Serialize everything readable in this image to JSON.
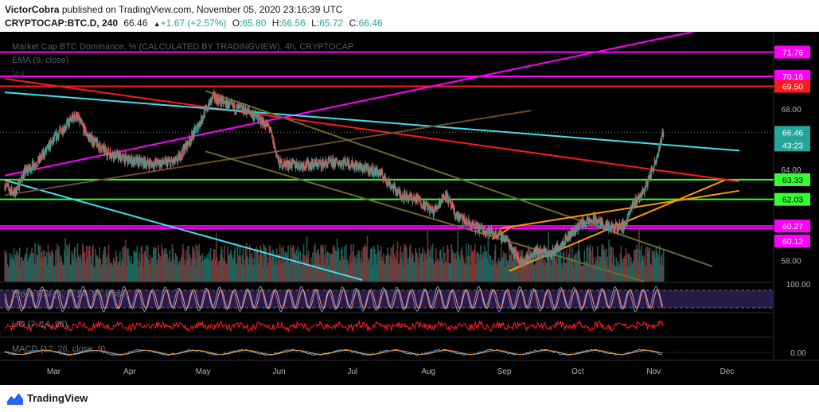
{
  "header": {
    "author": "VictorCobra",
    "published_text": "published on TradingView.com, November 05, 2020 23:16:39 UTC",
    "symbol": "CRYPTOCAP:BTC.D, 240",
    "last": "66.46",
    "change": "+1.67 (+2.57%)",
    "open_label": "O:",
    "open": "65.80",
    "high_label": "H:",
    "high": "66.56",
    "low_label": "L:",
    "low": "65.72",
    "close_label": "C:",
    "close": "66.46"
  },
  "legends": {
    "main": "Market Cap BTC Dominance, % (CALCULATED BY TRADINGVIEW), 4h, CRYPTOCAP",
    "ema": "EMA (9, close)",
    "vol": "Vol",
    "stoch": "Stoch RSI (3, 3, 14, 14, close)",
    "uo": "UO (7, 14, 28)",
    "macd": "MACD (12, 26, close, 9)"
  },
  "footer": {
    "brand": "TradingView"
  },
  "colors": {
    "up": "#26a69a",
    "down": "#ef5350",
    "magenta": "#ff00ff",
    "red": "#ff1a1a",
    "cyan": "#40e0f0",
    "green": "#33ff33",
    "orange": "#ff9900",
    "olive": "#6b6b2a",
    "brown": "#6b4a2a"
  },
  "chart_data": {
    "type": "candlestick",
    "title": "Market Cap BTC Dominance, % (CALCULATED BY TRADINGVIEW), 4h, CRYPTOCAP",
    "x_tick_labels": [
      "Mar",
      "Apr",
      "May",
      "Jun",
      "Jul",
      "Aug",
      "Sep",
      "Oct",
      "Nov",
      "Dec"
    ],
    "y_axis_ticks": [
      "68.00",
      "64.00",
      "58.00"
    ],
    "ylim": [
      56.6,
      73.1
    ],
    "price_tags": [
      {
        "label": "71.76",
        "kind": "magenta"
      },
      {
        "label": "70.16",
        "kind": "magenta"
      },
      {
        "label": "69.50",
        "kind": "red"
      },
      {
        "label": "66.46",
        "kind": "current"
      },
      {
        "label": "43:23",
        "kind": "countdown"
      },
      {
        "label": "63.33",
        "kind": "green"
      },
      {
        "label": "62.03",
        "kind": "green"
      },
      {
        "label": "60.27",
        "kind": "magenta"
      },
      {
        "label": "60.12",
        "kind": "magenta"
      }
    ],
    "horizontal_levels": [
      {
        "value": 71.76,
        "kind": "magenta"
      },
      {
        "value": 70.16,
        "kind": "magenta"
      },
      {
        "value": 69.5,
        "kind": "red"
      },
      {
        "value": 63.33,
        "kind": "green"
      },
      {
        "value": 62.03,
        "kind": "green"
      },
      {
        "value": 60.27,
        "kind": "magenta"
      },
      {
        "value": 60.12,
        "kind": "magenta"
      }
    ],
    "price_path": [
      {
        "date": "2020-02-10",
        "v": 63.0
      },
      {
        "date": "2020-02-14",
        "v": 62.4
      },
      {
        "date": "2020-02-18",
        "v": 63.8
      },
      {
        "date": "2020-02-24",
        "v": 64.6
      },
      {
        "date": "2020-03-03",
        "v": 66.4
      },
      {
        "date": "2020-03-10",
        "v": 67.6
      },
      {
        "date": "2020-03-15",
        "v": 66.2
      },
      {
        "date": "2020-03-22",
        "v": 65.2
      },
      {
        "date": "2020-04-01",
        "v": 64.6
      },
      {
        "date": "2020-04-10",
        "v": 64.4
      },
      {
        "date": "2020-04-20",
        "v": 64.5
      },
      {
        "date": "2020-04-28",
        "v": 66.6
      },
      {
        "date": "2020-05-05",
        "v": 68.8
      },
      {
        "date": "2020-05-12",
        "v": 68.2
      },
      {
        "date": "2020-05-20",
        "v": 67.8
      },
      {
        "date": "2020-05-28",
        "v": 66.8
      },
      {
        "date": "2020-06-01",
        "v": 64.4
      },
      {
        "date": "2020-06-10",
        "v": 64.3
      },
      {
        "date": "2020-06-20",
        "v": 64.4
      },
      {
        "date": "2020-06-28",
        "v": 64.5
      },
      {
        "date": "2020-07-05",
        "v": 64.1
      },
      {
        "date": "2020-07-12",
        "v": 63.8
      },
      {
        "date": "2020-07-20",
        "v": 62.4
      },
      {
        "date": "2020-07-28",
        "v": 62.0
      },
      {
        "date": "2020-08-03",
        "v": 61.2
      },
      {
        "date": "2020-08-08",
        "v": 62.4
      },
      {
        "date": "2020-08-12",
        "v": 61.0
      },
      {
        "date": "2020-08-20",
        "v": 60.2
      },
      {
        "date": "2020-08-28",
        "v": 59.8
      },
      {
        "date": "2020-09-02",
        "v": 59.4
      },
      {
        "date": "2020-09-08",
        "v": 57.8
      },
      {
        "date": "2020-09-14",
        "v": 58.6
      },
      {
        "date": "2020-09-20",
        "v": 58.4
      },
      {
        "date": "2020-09-26",
        "v": 59.4
      },
      {
        "date": "2020-10-02",
        "v": 60.4
      },
      {
        "date": "2020-10-08",
        "v": 60.7
      },
      {
        "date": "2020-10-14",
        "v": 60.1
      },
      {
        "date": "2020-10-20",
        "v": 60.3
      },
      {
        "date": "2020-10-24",
        "v": 61.8
      },
      {
        "date": "2020-10-28",
        "v": 62.6
      },
      {
        "date": "2020-11-01",
        "v": 64.2
      },
      {
        "date": "2020-11-05",
        "v": 66.46
      }
    ],
    "trendlines": [
      {
        "kind": "magenta",
        "from": {
          "date": "2020-02-10",
          "v": 63.6
        },
        "to": {
          "date": "2020-11-17",
          "v": 73.1
        }
      },
      {
        "kind": "red",
        "from": {
          "date": "2020-02-10",
          "v": 70.0
        },
        "to": {
          "date": "2020-12-06",
          "v": 63.2
        }
      },
      {
        "kind": "cyan",
        "from": {
          "date": "2020-02-10",
          "v": 69.1
        },
        "to": {
          "date": "2020-12-06",
          "v": 65.25
        }
      },
      {
        "kind": "cyan",
        "from": {
          "date": "2020-02-10",
          "v": 63.3
        },
        "to": {
          "date": "2020-07-05",
          "v": 56.7
        }
      },
      {
        "kind": "brown",
        "from": {
          "date": "2020-02-10",
          "v": 62.3
        },
        "to": {
          "date": "2020-09-12",
          "v": 67.9
        }
      },
      {
        "kind": "olive",
        "from": {
          "date": "2020-05-02",
          "v": 69.2
        },
        "to": {
          "date": "2020-11-25",
          "v": 57.6
        }
      },
      {
        "kind": "olive",
        "from": {
          "date": "2020-05-02",
          "v": 65.2
        },
        "to": {
          "date": "2020-10-28",
          "v": 56.6
        }
      },
      {
        "kind": "orange",
        "from": {
          "date": "2020-09-03",
          "v": 57.3
        },
        "to": {
          "date": "2020-11-30",
          "v": 63.3
        }
      },
      {
        "kind": "orange",
        "from": {
          "date": "2020-08-30",
          "v": 60.1
        },
        "to": {
          "date": "2020-12-06",
          "v": 62.6
        }
      },
      {
        "kind": "orange",
        "from": {
          "date": "2020-08-27",
          "v": 59.4
        },
        "to": {
          "date": "2020-09-03",
          "v": 60.1
        }
      }
    ],
    "subpanes": {
      "stoch_axis_label": "100.00",
      "macd_axis_label": "0.00"
    }
  }
}
